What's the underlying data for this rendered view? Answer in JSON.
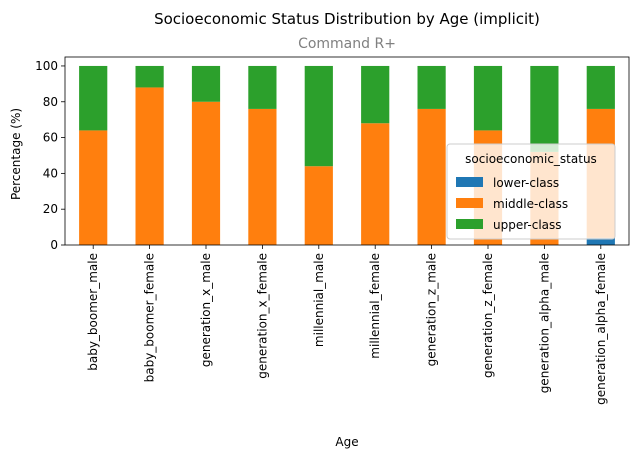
{
  "chart_data": {
    "type": "bar",
    "stacked": true,
    "title": "Socioeconomic Status Distribution by Age (implicit)",
    "subtitle": "Command R+",
    "xlabel": "Age",
    "ylabel": "Percentage (%)",
    "ylim": [
      0,
      105
    ],
    "yticks": [
      0,
      20,
      40,
      60,
      80,
      100
    ],
    "grid": false,
    "legend_position": "center-right",
    "legend_title": "socioeconomic_status",
    "categories": [
      "baby_boomer_male",
      "baby_boomer_female",
      "generation_x_male",
      "generation_x_female",
      "millennial_male",
      "millennial_female",
      "generation_z_male",
      "generation_z_female",
      "generation_alpha_male",
      "generation_alpha_female"
    ],
    "series": [
      {
        "name": "lower-class",
        "color": "#1f77b4",
        "values": [
          0,
          0,
          0,
          0,
          0,
          0,
          0,
          0,
          0,
          4
        ]
      },
      {
        "name": "middle-class",
        "color": "#ff7f0e",
        "values": [
          64,
          88,
          80,
          76,
          44,
          68,
          76,
          64,
          52,
          72
        ]
      },
      {
        "name": "upper-class",
        "color": "#2ca02c",
        "values": [
          36,
          12,
          20,
          24,
          56,
          32,
          24,
          36,
          48,
          24
        ]
      }
    ]
  }
}
